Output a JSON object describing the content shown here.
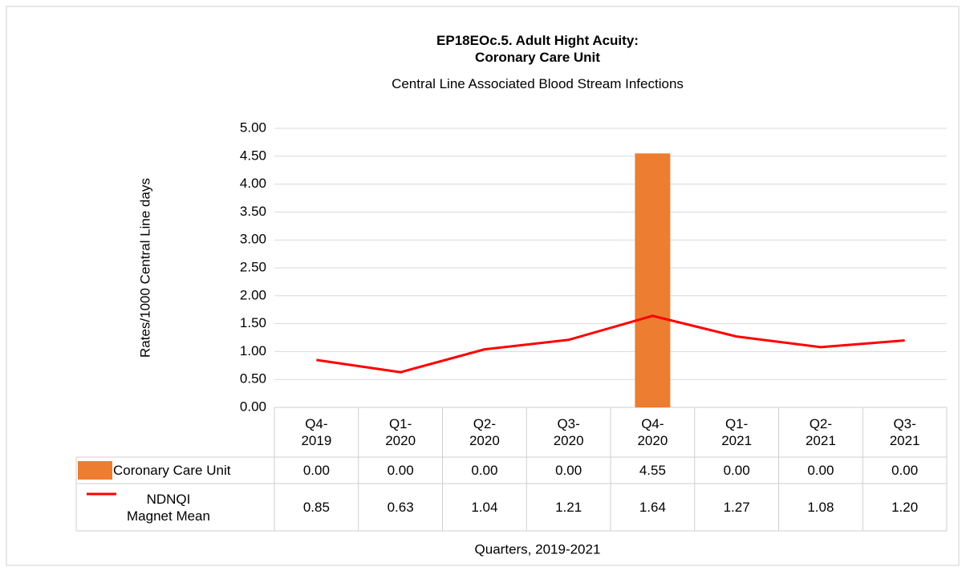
{
  "chart_data": {
    "type": "bar-line-table",
    "title": "EP18EOc.5. Adult Hight Acuity:\nCoronary Care Unit",
    "subtitle": "Central Line Associated Blood Stream Infections",
    "y_label": "Rates/1000 Central Line days",
    "x_label": "Quarters, 2019-2021",
    "categories": [
      "Q4-\n2019",
      "Q1-\n2020",
      "Q2-\n2020",
      "Q3-\n2020",
      "Q4-\n2020",
      "Q1-\n2021",
      "Q2-\n2021",
      "Q3-\n2021"
    ],
    "series": [
      {
        "name": "Coronary Care Unit",
        "kind": "bar",
        "color": "#ed7d31",
        "values": [
          0,
          0,
          0,
          0,
          4.55,
          0,
          0,
          0
        ],
        "value_labels": [
          "0.00",
          "0.00",
          "0.00",
          "0.00",
          "4.55",
          "0.00",
          "0.00",
          "0.00"
        ]
      },
      {
        "name": "NDNQI\nMagnet Mean",
        "kind": "line",
        "color": "#ff0000",
        "values": [
          0.85,
          0.63,
          1.04,
          1.21,
          1.64,
          1.27,
          1.08,
          1.2
        ],
        "value_labels": [
          "0.85",
          "0.63",
          "1.04",
          "1.21",
          "1.64",
          "1.27",
          "1.08",
          "1.20"
        ]
      }
    ],
    "ylim": [
      0,
      5
    ],
    "yticks": [
      {
        "value": 0,
        "label": "0.00"
      },
      {
        "value": 0.5,
        "label": "0.50"
      },
      {
        "value": 1,
        "label": "1.00"
      },
      {
        "value": 1.5,
        "label": "1.50"
      },
      {
        "value": 2,
        "label": "2.00"
      },
      {
        "value": 2.5,
        "label": "2.50"
      },
      {
        "value": 3,
        "label": "3.00"
      },
      {
        "value": 3.5,
        "label": "3.50"
      },
      {
        "value": 4,
        "label": "4.00"
      },
      {
        "value": 4.5,
        "label": "4.50"
      },
      {
        "value": 5,
        "label": "5.00"
      }
    ],
    "grid": true
  }
}
